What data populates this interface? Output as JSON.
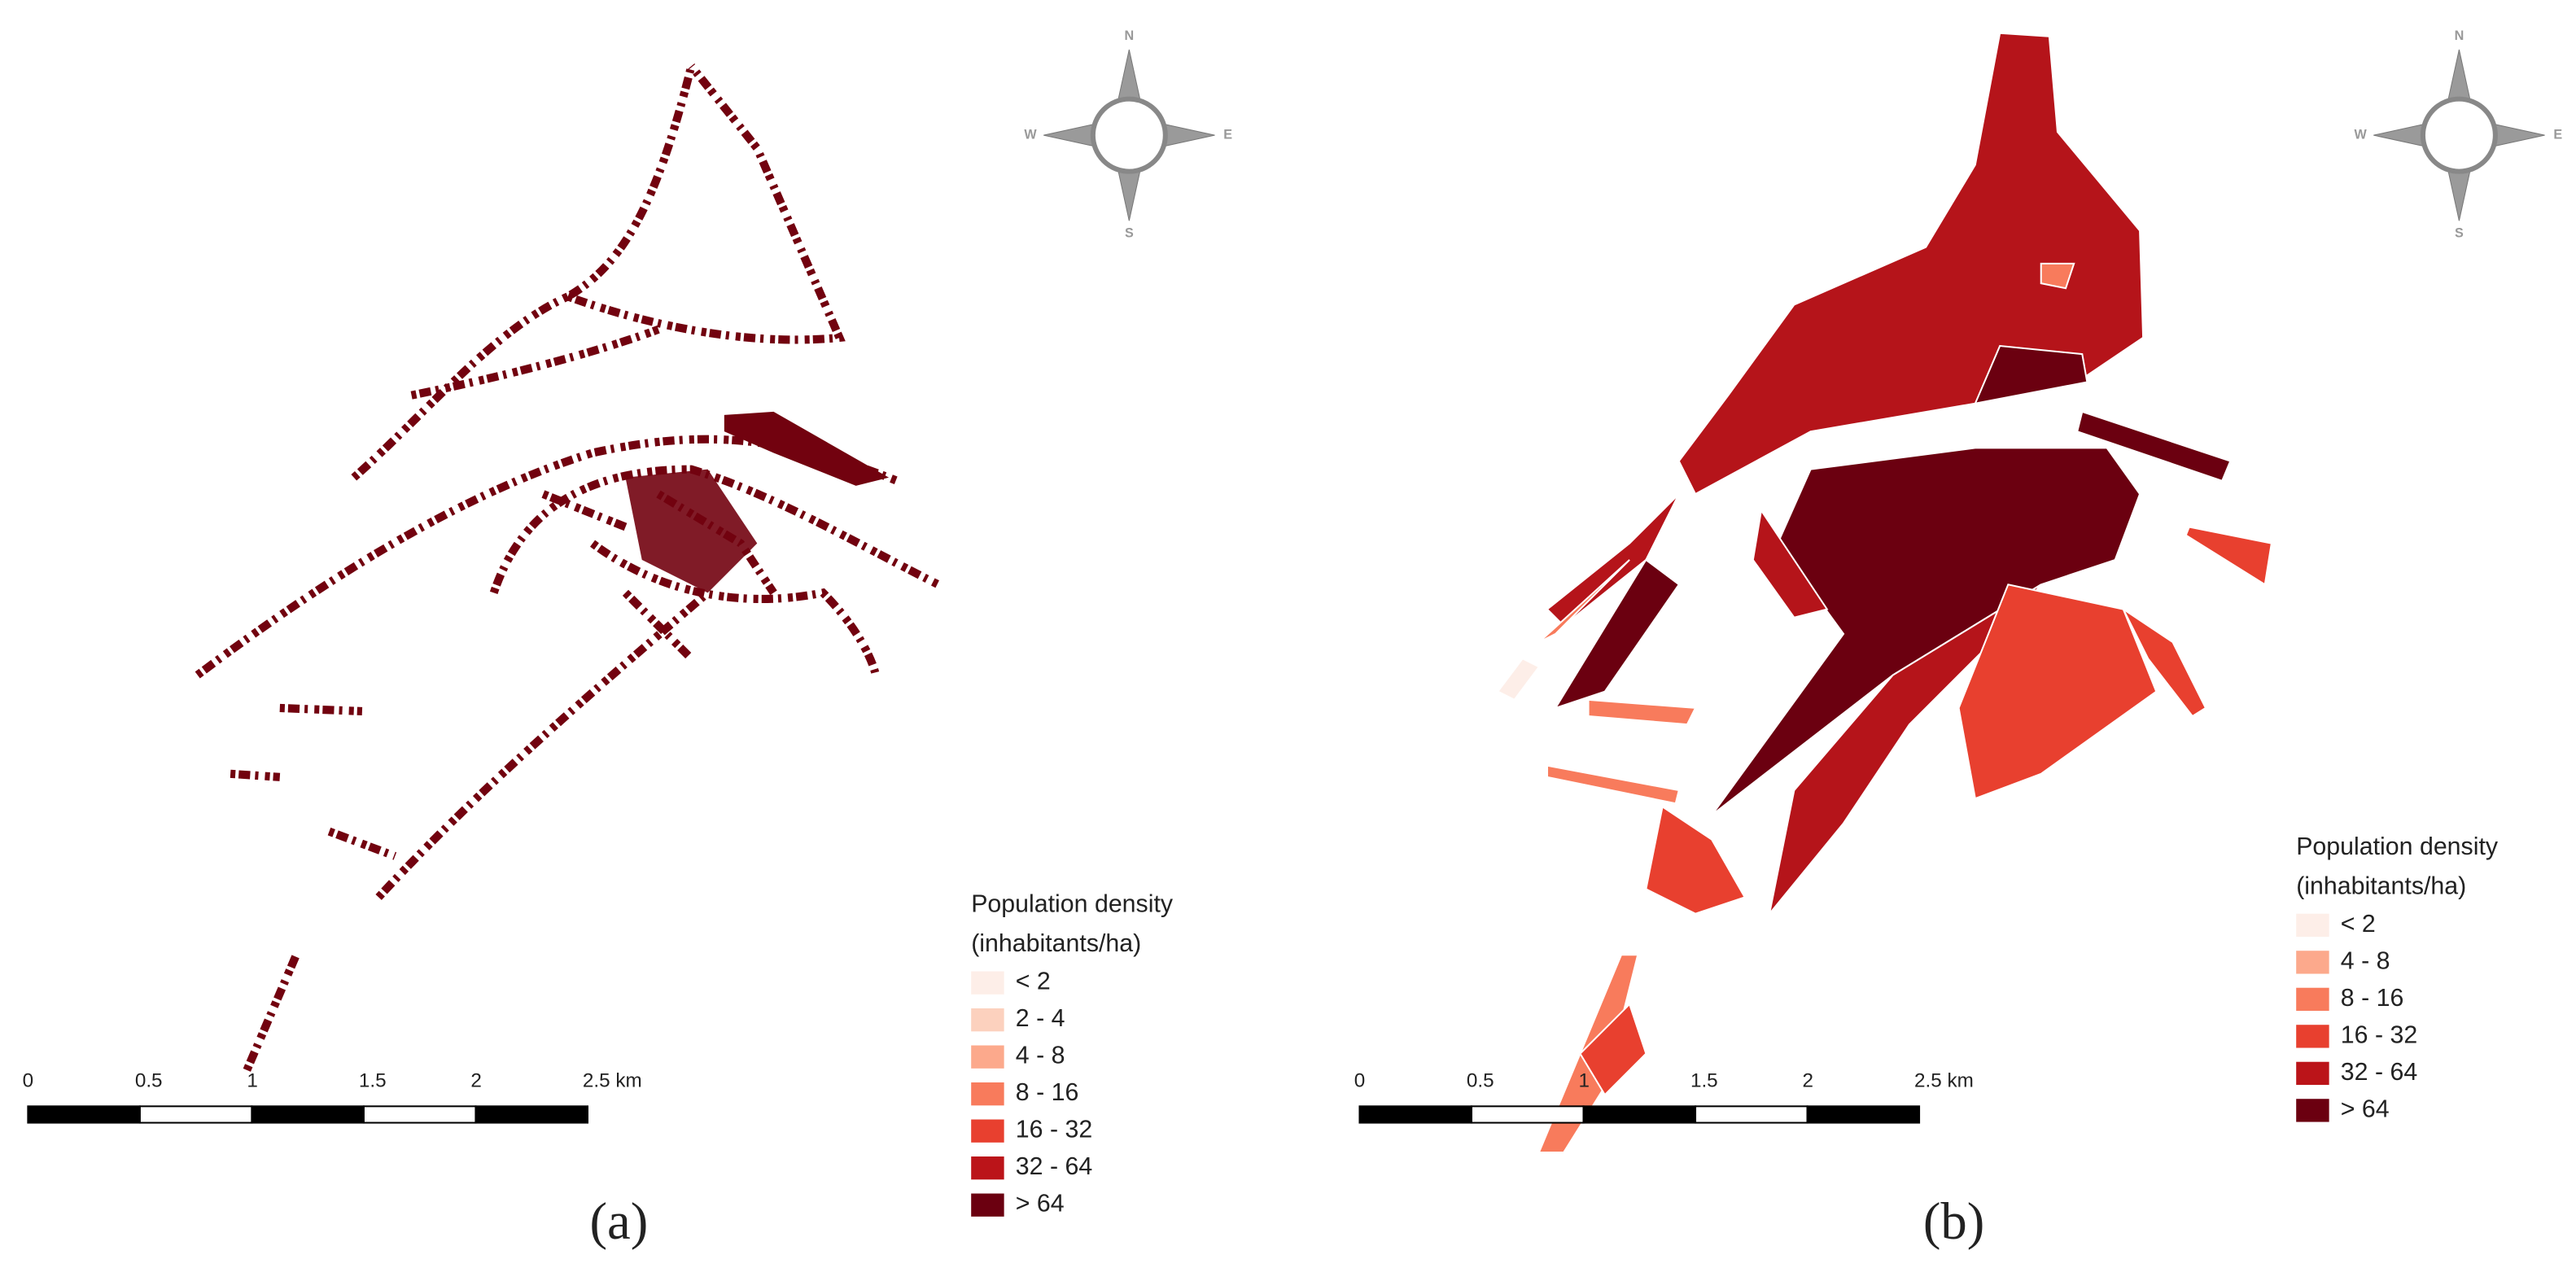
{
  "panels": [
    {
      "label": "(a)",
      "compass": {
        "n": "N",
        "e": "E",
        "s": "S",
        "w": "W"
      },
      "legend": {
        "title": "Population density",
        "subtitle": "(inhabitants/ha)",
        "entries": [
          {
            "label": "< 2",
            "color": "#fdeee8"
          },
          {
            "label": "2 - 4",
            "color": "#fcd1be"
          },
          {
            "label": "4 - 8",
            "color": "#fca98c"
          },
          {
            "label": "8 - 16",
            "color": "#f87b5c"
          },
          {
            "label": "16 - 32",
            "color": "#e8402f"
          },
          {
            "label": "32 - 64",
            "color": "#bb1419"
          },
          {
            "label": "> 64",
            "color": "#6b0010"
          }
        ]
      },
      "scale_bar": {
        "ticks": [
          "0",
          "0.5",
          "1",
          "1.5",
          "2",
          "2.5 km"
        ]
      }
    },
    {
      "label": "(b)",
      "compass": {
        "n": "N",
        "e": "E",
        "s": "S",
        "w": "W"
      },
      "legend": {
        "title": "Population density",
        "subtitle": "(inhabitants/ha)",
        "entries": [
          {
            "label": "< 2",
            "color": "#fdeee8"
          },
          {
            "label": "4 - 8",
            "color": "#fca98c"
          },
          {
            "label": "8 - 16",
            "color": "#f87b5c"
          },
          {
            "label": "16 - 32",
            "color": "#e8402f"
          },
          {
            "label": "32 - 64",
            "color": "#bb1419"
          },
          {
            "label": "> 64",
            "color": "#6b0010"
          }
        ]
      },
      "scale_bar": {
        "ticks": [
          "0",
          "0.5",
          "1",
          "1.5",
          "2",
          "2.5 km"
        ]
      }
    }
  ]
}
